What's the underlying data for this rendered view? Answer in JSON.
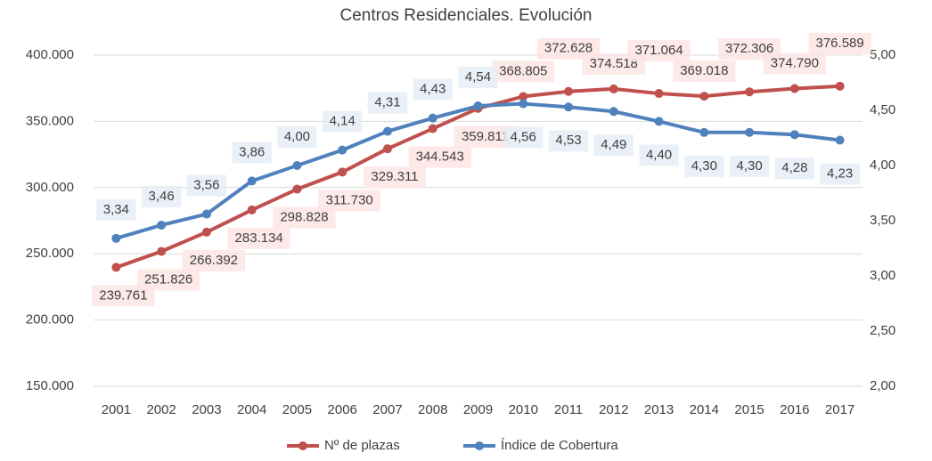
{
  "chart_data": {
    "type": "line",
    "title": "Centros Residenciales. Evolución",
    "categories": [
      "2001",
      "2002",
      "2003",
      "2004",
      "2005",
      "2006",
      "2007",
      "2008",
      "2009",
      "2010",
      "2011",
      "2012",
      "2013",
      "2014",
      "2015",
      "2016",
      "2017"
    ],
    "series": [
      {
        "name": "Nº de plazas",
        "color": "#c0504d",
        "values": [
          239761,
          251826,
          266392,
          283134,
          298828,
          311730,
          329311,
          344543,
          359811,
          368805,
          372628,
          374518,
          371064,
          369018,
          372306,
          374790,
          376589
        ],
        "value_labels": [
          "239.761",
          "251.826",
          "266.392",
          "283.134",
          "298.828",
          "311.730",
          "329.311",
          "344.543",
          "359.811",
          "368.805",
          "372.628",
          "374.518",
          "371.064",
          "369.018",
          "372.306",
          "374.790",
          "376.589"
        ]
      },
      {
        "name": "Índice de Cobertura",
        "color": "#4f81bd",
        "axis": "y2",
        "values": [
          3.34,
          3.46,
          3.56,
          3.86,
          4.0,
          4.14,
          4.31,
          4.43,
          4.54,
          4.56,
          4.53,
          4.49,
          4.4,
          4.3,
          4.3,
          4.28,
          4.23
        ],
        "value_labels": [
          "3,34",
          "3,46",
          "3,56",
          "3,86",
          "4,00",
          "4,14",
          "4,31",
          "4,43",
          "4,54",
          "4,56",
          "4,53",
          "4,49",
          "4,40",
          "4,30",
          "4,30",
          "4,28",
          "4,23"
        ]
      }
    ],
    "ylim": [
      150000,
      400000
    ],
    "yticks": [
      {
        "value": 150000,
        "label": "150.000"
      },
      {
        "value": 200000,
        "label": "200.000"
      },
      {
        "value": 250000,
        "label": "250.000"
      },
      {
        "value": 300000,
        "label": "300.000"
      },
      {
        "value": 350000,
        "label": "350.000"
      },
      {
        "value": 400000,
        "label": "400.000"
      }
    ],
    "y2lim": [
      2,
      5
    ],
    "y2ticks": [
      {
        "value": 2,
        "label": "2,00"
      },
      {
        "value": 2.5,
        "label": "2,50"
      },
      {
        "value": 3,
        "label": "3,00"
      },
      {
        "value": 3.5,
        "label": "3,50"
      },
      {
        "value": 4,
        "label": "4,00"
      },
      {
        "value": 4.5,
        "label": "4,50"
      },
      {
        "value": 5,
        "label": "5,00"
      }
    ],
    "grid": true,
    "legend": "bottom"
  }
}
